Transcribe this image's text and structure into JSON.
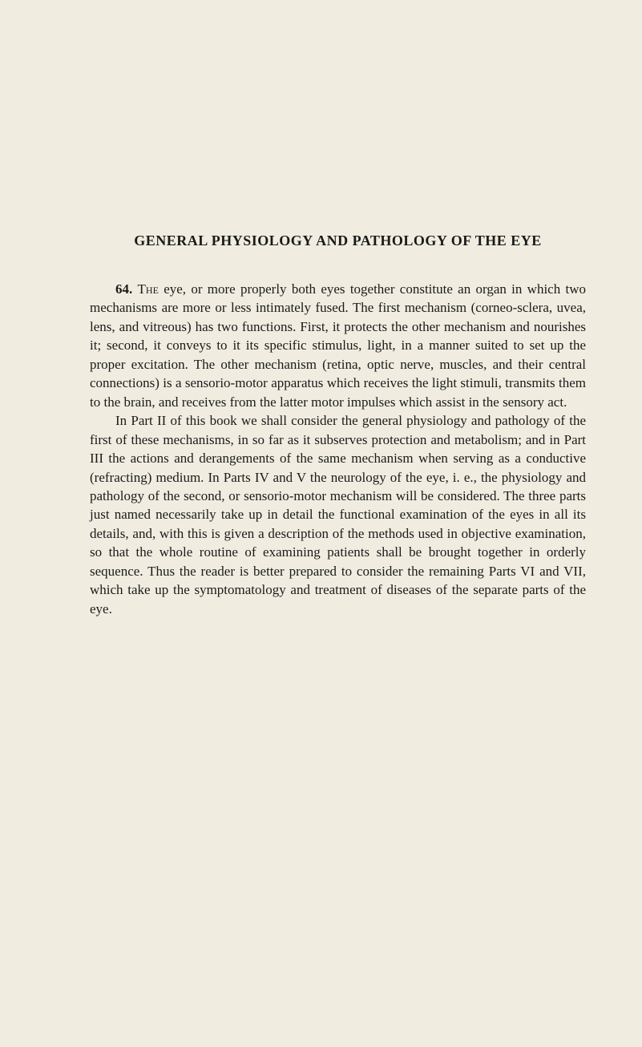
{
  "page": {
    "background_color": "#f0ede0",
    "text_color": "#1a1a1a",
    "title_fontsize": 18,
    "body_fontsize": 17,
    "line_height": 1.38
  },
  "title": "GENERAL PHYSIOLOGY AND PATHOLOGY OF THE EYE",
  "para1_num": "64.",
  "para1_lead": "The",
  "para1_rest": " eye, or more properly both eyes together constitute an organ in which two mechanisms are more or less intimately fused. The first mechanism (corneo-sclera, uvea, lens, and vitreous) has two functions. First, it protects the other mechanism and nourishes it; second, it conveys to it its specific stimulus, light, in a manner suited to set up the proper excitation. The other mechanism (retina, optic nerve, muscles, and their central connections) is a sensorio-motor apparatus which receives the light stimuli, transmits them to the brain, and receives from the latter motor impulses which assist in the sensory act.",
  "para2": "In Part II of this book we shall consider the general physiology and pathology of the first of these mechanisms, in so far as it subserves protec­tion and metabolism; and in Part III the actions and derangements of the same mechanism when serving as a conductive (refracting) medium. In Parts IV and V the neurology of the eye, i. e., the physiology and pathology of the second, or sensorio-motor mechanism will be considered. The three parts just named necessarily take up in detail the functional examination of the eyes in all its details, and, with this is given a description of the methods used in objective examination, so that the whole routine of examining patients shall be brought together in orderly sequence. Thus the reader is better prepared to consider the remaining Parts VI and VII, which take up the symptomatology and treatment of diseases of the separate parts of the eye."
}
